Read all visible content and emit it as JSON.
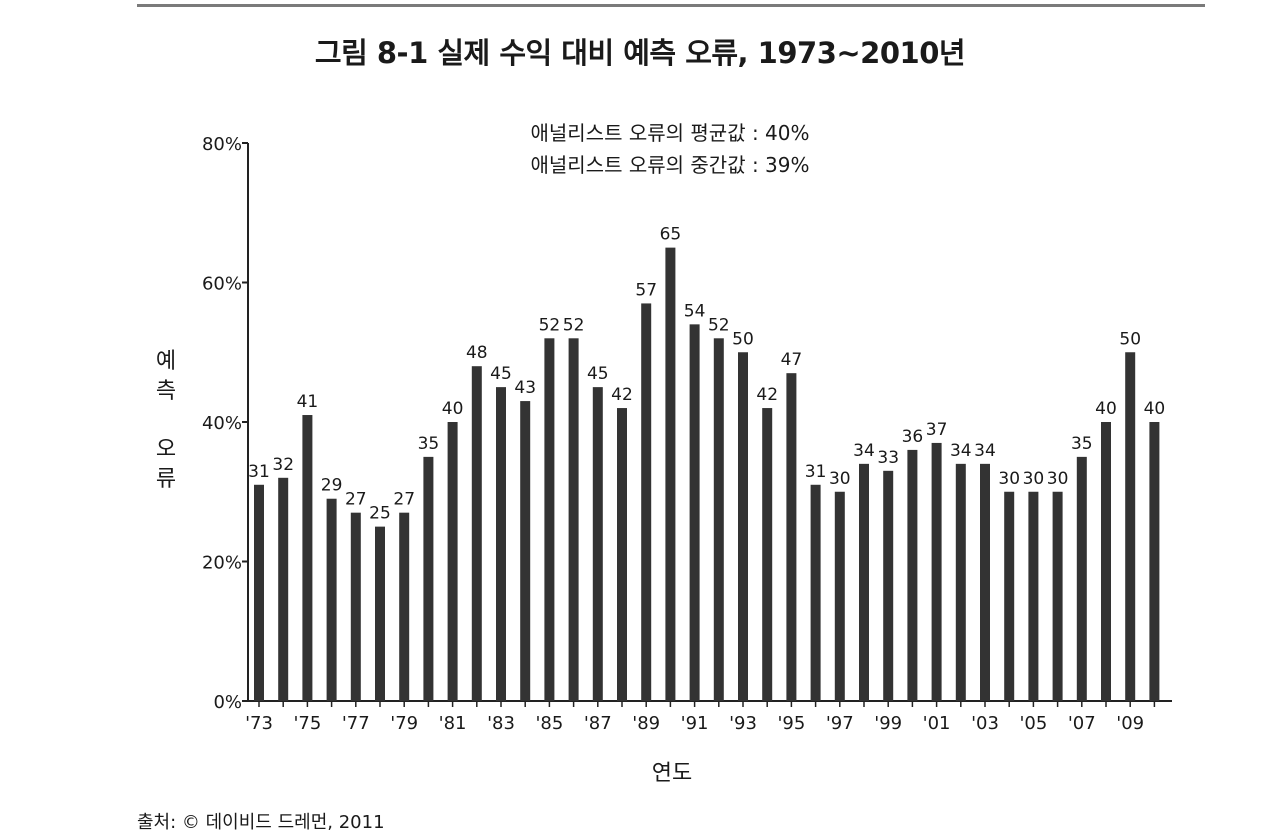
{
  "figure": {
    "title": "그림 8-1  실제 수익 대비 예측 오류, 1973~2010년",
    "source": "출처: © 데이비드 드레먼, 2011"
  },
  "annotations": {
    "mean": "애널리스트 오류의 평균값 : 40%",
    "median": "애널리스트 오류의 중간값 : 39%"
  },
  "chart_data": {
    "type": "bar",
    "title": "실제 수익 대비 예측 오류, 1973~2010년",
    "xlabel": "연도",
    "ylabel": "예측 오류",
    "ylim": [
      0,
      80
    ],
    "y_ticks": [
      "0%",
      "20%",
      "40%",
      "60%",
      "80%"
    ],
    "x_tick_labels": [
      "'73",
      "'75",
      "'77",
      "'79",
      "'81",
      "'83",
      "'85",
      "'87",
      "'89",
      "'91",
      "'93",
      "'95",
      "'97",
      "'99",
      "'01",
      "'03",
      "'05",
      "'07",
      "'09"
    ],
    "categories": [
      "1973",
      "1974",
      "1975",
      "1976",
      "1977",
      "1978",
      "1979",
      "1980",
      "1981",
      "1982",
      "1983",
      "1984",
      "1985",
      "1986",
      "1987",
      "1988",
      "1989",
      "1990",
      "1991",
      "1992",
      "1993",
      "1994",
      "1995",
      "1996",
      "1997",
      "1998",
      "1999",
      "2000",
      "2001",
      "2002",
      "2003",
      "2004",
      "2005",
      "2006",
      "2007",
      "2008",
      "2009",
      "2010"
    ],
    "values": [
      31,
      32,
      41,
      29,
      27,
      25,
      27,
      35,
      40,
      48,
      45,
      43,
      52,
      52,
      45,
      42,
      57,
      65,
      54,
      52,
      50,
      42,
      47,
      31,
      30,
      34,
      33,
      36,
      37,
      34,
      34,
      30,
      30,
      30,
      35,
      40,
      50,
      40
    ],
    "bar_color": "#333333",
    "grid": false
  }
}
